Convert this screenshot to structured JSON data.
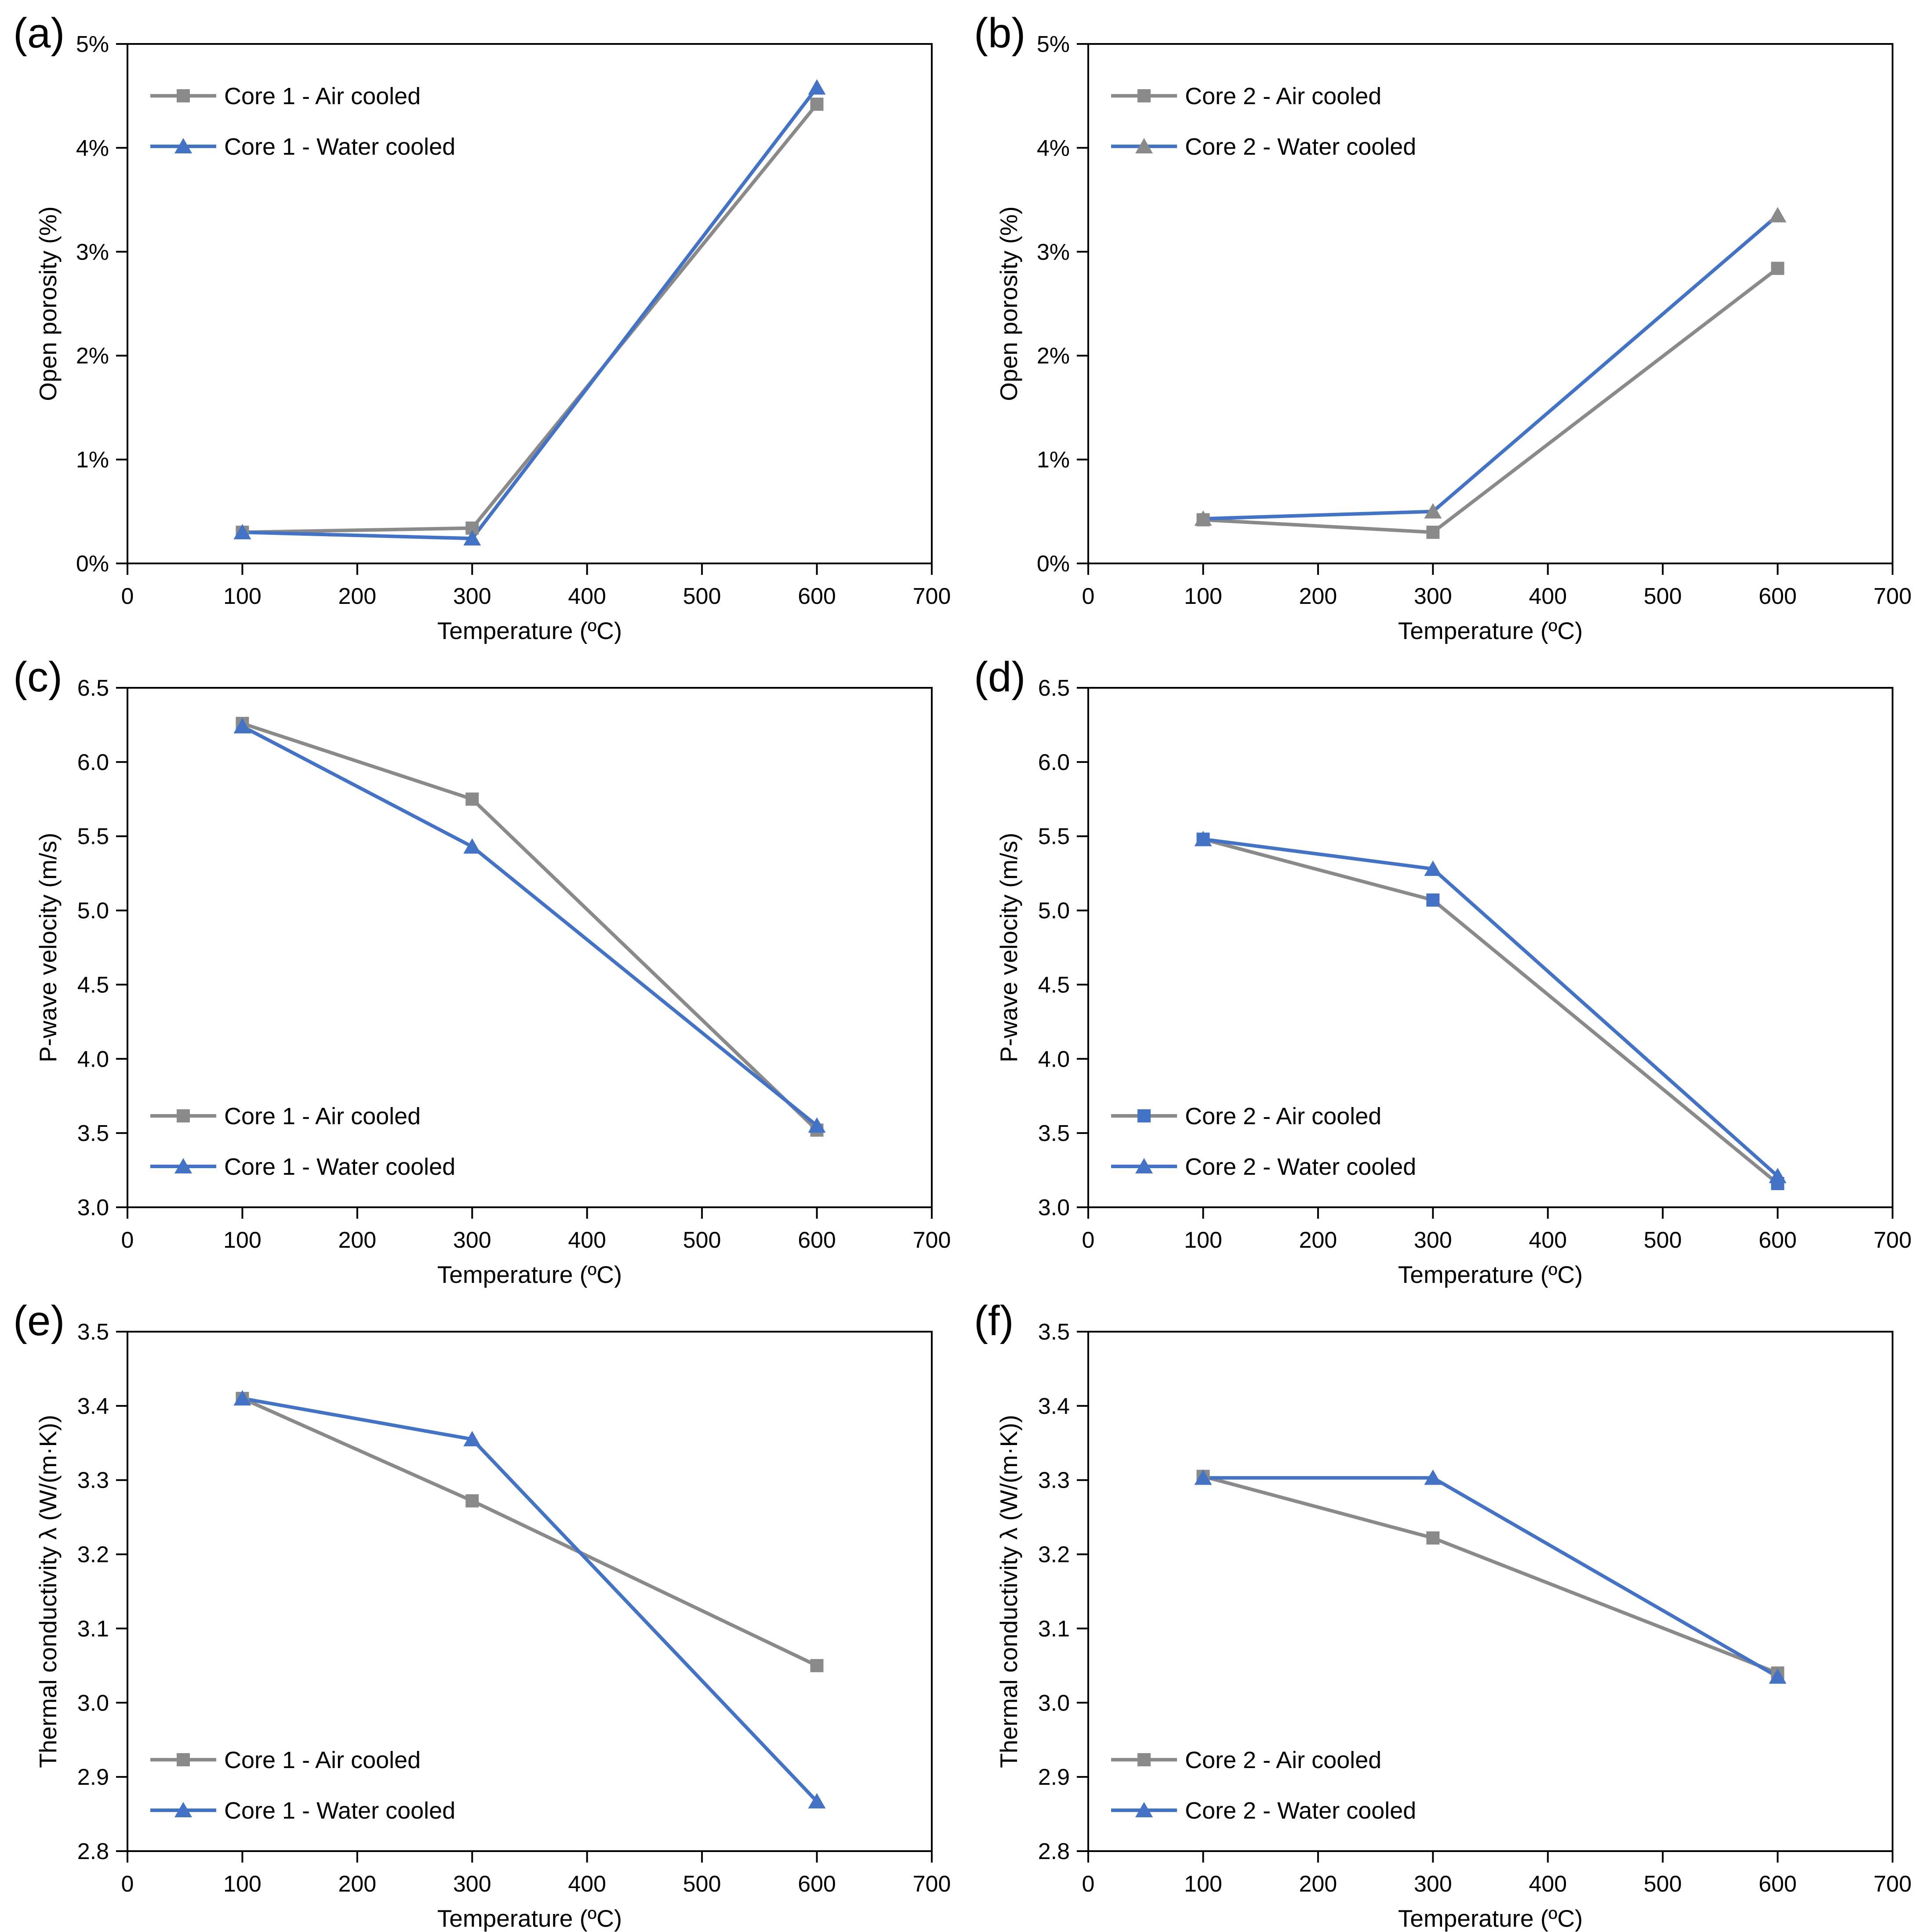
{
  "figure": {
    "background": "#ffffff",
    "colors": {
      "gray": "#8a8a8a",
      "blue": "#4472c4",
      "axis": "#000000"
    }
  },
  "chart_data": [
    {
      "type": "line",
      "panel_label": "(a)",
      "xlabel": "Temperature (ºC)",
      "ylabel": "Open porosity (%)",
      "xlim": [
        0,
        700
      ],
      "ylim": [
        0,
        5
      ],
      "x_ticks": [
        0,
        100,
        200,
        300,
        400,
        500,
        600,
        700
      ],
      "x_tick_labels": [
        "0",
        "100",
        "200",
        "300",
        "400",
        "500",
        "600",
        "700"
      ],
      "y_ticks": [
        0,
        1,
        2,
        3,
        4,
        5
      ],
      "y_tick_labels": [
        "0%",
        "1%",
        "2%",
        "3%",
        "4%",
        "5%"
      ],
      "grid": false,
      "legend_position": "top-left",
      "x": [
        100,
        300,
        600
      ],
      "series": [
        {
          "name": "Core 1 - Air cooled",
          "values": [
            0.3,
            0.34,
            4.42
          ],
          "line_color": "#8a8a8a",
          "marker_color": "#8a8a8a",
          "marker": "square"
        },
        {
          "name": "Core 1 - Water cooled",
          "values": [
            0.3,
            0.24,
            4.58
          ],
          "line_color": "#4472c4",
          "marker_color": "#4472c4",
          "marker": "triangle"
        }
      ]
    },
    {
      "type": "line",
      "panel_label": "(b)",
      "xlabel": "Temperature (ºC)",
      "ylabel": "Open porosity (%)",
      "xlim": [
        0,
        700
      ],
      "ylim": [
        0,
        5
      ],
      "x_ticks": [
        0,
        100,
        200,
        300,
        400,
        500,
        600,
        700
      ],
      "x_tick_labels": [
        "0",
        "100",
        "200",
        "300",
        "400",
        "500",
        "600",
        "700"
      ],
      "y_ticks": [
        0,
        1,
        2,
        3,
        4,
        5
      ],
      "y_tick_labels": [
        "0%",
        "1%",
        "2%",
        "3%",
        "4%",
        "5%"
      ],
      "grid": false,
      "legend_position": "top-left",
      "x": [
        100,
        300,
        600
      ],
      "series": [
        {
          "name": "Core 2 - Air cooled",
          "values": [
            0.42,
            0.3,
            2.84
          ],
          "line_color": "#8a8a8a",
          "marker_color": "#8a8a8a",
          "marker": "square"
        },
        {
          "name": "Core 2 - Water cooled",
          "values": [
            0.43,
            0.5,
            3.35
          ],
          "line_color": "#4472c4",
          "marker_color": "#8a8a8a",
          "marker": "triangle"
        }
      ]
    },
    {
      "type": "line",
      "panel_label": "(c)",
      "xlabel": "Temperature (ºC)",
      "ylabel": "P-wave velocity (m/s)",
      "xlim": [
        0,
        700
      ],
      "ylim": [
        3.0,
        6.5
      ],
      "x_ticks": [
        0,
        100,
        200,
        300,
        400,
        500,
        600,
        700
      ],
      "x_tick_labels": [
        "0",
        "100",
        "200",
        "300",
        "400",
        "500",
        "600",
        "700"
      ],
      "y_ticks": [
        3.0,
        3.5,
        4.0,
        4.5,
        5.0,
        5.5,
        6.0,
        6.5
      ],
      "y_tick_labels": [
        "3.0",
        "3.5",
        "4.0",
        "4.5",
        "5.0",
        "5.5",
        "6.0",
        "6.5"
      ],
      "grid": false,
      "legend_position": "bottom-left",
      "x": [
        100,
        300,
        600
      ],
      "series": [
        {
          "name": "Core 1 - Air cooled",
          "values": [
            6.26,
            5.75,
            3.52
          ],
          "line_color": "#8a8a8a",
          "marker_color": "#8a8a8a",
          "marker": "square"
        },
        {
          "name": "Core 1 - Water cooled",
          "values": [
            6.24,
            5.43,
            3.55
          ],
          "line_color": "#4472c4",
          "marker_color": "#4472c4",
          "marker": "triangle"
        }
      ]
    },
    {
      "type": "line",
      "panel_label": "(d)",
      "xlabel": "Temperature (ºC)",
      "ylabel": "P-wave velocity (m/s)",
      "xlim": [
        0,
        700
      ],
      "ylim": [
        3.0,
        6.5
      ],
      "x_ticks": [
        0,
        100,
        200,
        300,
        400,
        500,
        600,
        700
      ],
      "x_tick_labels": [
        "0",
        "100",
        "200",
        "300",
        "400",
        "500",
        "600",
        "700"
      ],
      "y_ticks": [
        3.0,
        3.5,
        4.0,
        4.5,
        5.0,
        5.5,
        6.0,
        6.5
      ],
      "y_tick_labels": [
        "3.0",
        "3.5",
        "4.0",
        "4.5",
        "5.0",
        "5.5",
        "6.0",
        "6.5"
      ],
      "grid": false,
      "legend_position": "bottom-left",
      "x": [
        100,
        300,
        600
      ],
      "series": [
        {
          "name": "Core 2 - Air cooled",
          "values": [
            5.48,
            5.07,
            3.16
          ],
          "line_color": "#8a8a8a",
          "marker_color": "#4472c4",
          "marker": "square"
        },
        {
          "name": "Core 2 - Water cooled",
          "values": [
            5.48,
            5.28,
            3.21
          ],
          "line_color": "#4472c4",
          "marker_color": "#4472c4",
          "marker": "triangle"
        }
      ]
    },
    {
      "type": "line",
      "panel_label": "(e)",
      "xlabel": "Temperature (ºC)",
      "ylabel": "Thermal conductivity  λ (W/(m·K))",
      "xlim": [
        0,
        700
      ],
      "ylim": [
        2.8,
        3.5
      ],
      "x_ticks": [
        0,
        100,
        200,
        300,
        400,
        500,
        600,
        700
      ],
      "x_tick_labels": [
        "0",
        "100",
        "200",
        "300",
        "400",
        "500",
        "600",
        "700"
      ],
      "y_ticks": [
        2.8,
        2.9,
        3.0,
        3.1,
        3.2,
        3.3,
        3.4,
        3.5
      ],
      "y_tick_labels": [
        "2.8",
        "2.9",
        "3.0",
        "3.1",
        "3.2",
        "3.3",
        "3.4",
        "3.5"
      ],
      "grid": false,
      "legend_position": "bottom-left",
      "x": [
        100,
        300,
        600
      ],
      "series": [
        {
          "name": "Core 1 - Air cooled",
          "values": [
            3.41,
            3.272,
            3.05
          ],
          "line_color": "#8a8a8a",
          "marker_color": "#8a8a8a",
          "marker": "square"
        },
        {
          "name": "Core 1 - Water cooled",
          "values": [
            3.41,
            3.355,
            2.867
          ],
          "line_color": "#4472c4",
          "marker_color": "#4472c4",
          "marker": "triangle"
        }
      ]
    },
    {
      "type": "line",
      "panel_label": "(f)",
      "xlabel": "Temperature (ºC)",
      "ylabel": "Thermal conductivity  λ (W/(m·K))",
      "xlim": [
        0,
        700
      ],
      "ylim": [
        2.8,
        3.5
      ],
      "x_ticks": [
        0,
        100,
        200,
        300,
        400,
        500,
        600,
        700
      ],
      "x_tick_labels": [
        "0",
        "100",
        "200",
        "300",
        "400",
        "500",
        "600",
        "700"
      ],
      "y_ticks": [
        2.8,
        2.9,
        3.0,
        3.1,
        3.2,
        3.3,
        3.4,
        3.5
      ],
      "y_tick_labels": [
        "2.8",
        "2.9",
        "3.0",
        "3.1",
        "3.2",
        "3.3",
        "3.4",
        "3.5"
      ],
      "grid": false,
      "legend_position": "bottom-left",
      "x": [
        100,
        300,
        600
      ],
      "series": [
        {
          "name": "Core 2 - Air cooled",
          "values": [
            3.305,
            3.222,
            3.04
          ],
          "line_color": "#8a8a8a",
          "marker_color": "#8a8a8a",
          "marker": "square"
        },
        {
          "name": "Core 2 - Water cooled",
          "values": [
            3.303,
            3.303,
            3.035
          ],
          "line_color": "#4472c4",
          "marker_color": "#4472c4",
          "marker": "triangle"
        }
      ]
    }
  ]
}
